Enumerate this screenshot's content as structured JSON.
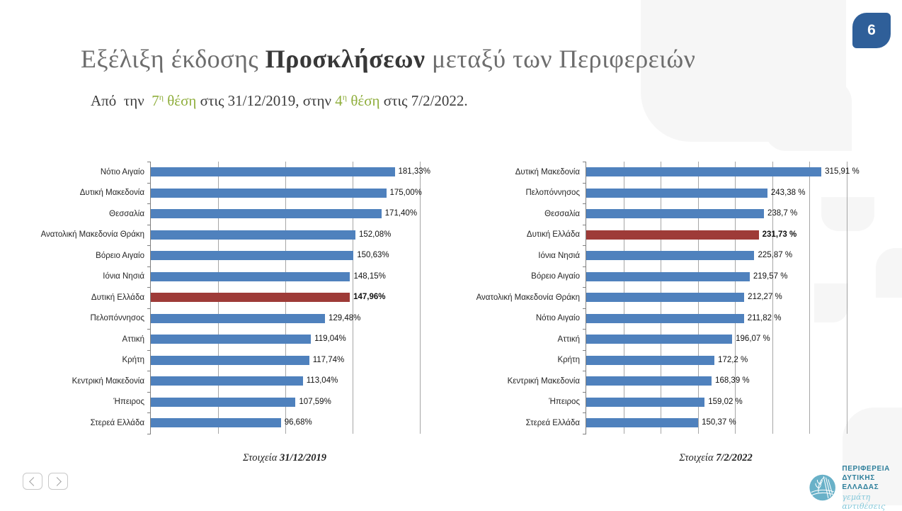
{
  "page_number": "6",
  "title": {
    "part1": "Εξέλιξη έκδοσης ",
    "part2": "Προσκλήσεων",
    "part3": " μεταξύ των Περιφερειών"
  },
  "subtitle": {
    "segments": [
      {
        "text": "Από  την  ",
        "green": false
      },
      {
        "text": "7",
        "green": true
      },
      {
        "text": "η",
        "green": true,
        "sup": true
      },
      {
        "text": " θέση",
        "green": true
      },
      {
        "text": " στις 31/12/2019, στην ",
        "green": false
      },
      {
        "text": "4",
        "green": true
      },
      {
        "text": "η",
        "green": true,
        "sup": true
      },
      {
        "text": " θέση",
        "green": true
      },
      {
        "text": " στις 7/2/2022.",
        "green": false
      }
    ]
  },
  "chart_data": [
    {
      "type": "bar",
      "orientation": "horizontal",
      "caption_prefix": "Στοιχεία ",
      "caption_date": "31/12/2019",
      "xlim": [
        0,
        200
      ],
      "gridline_step": 50,
      "grid": true,
      "categories": [
        "Νότιο Αιγαίο",
        "Δυτική Μακεδονία",
        "Θεσσαλία",
        "Ανατολική Μακεδονία Θράκη",
        "Βόρειο Αιγαίο",
        "Ιόνια Νησιά",
        "Δυτική Ελλάδα",
        "Πελοπόννησος",
        "Αττική",
        "Κρήτη",
        "Κεντρική Μακεδονία",
        "Ήπειρος",
        "Στερεά Ελλάδα"
      ],
      "values": [
        181.33,
        175.0,
        171.4,
        152.08,
        150.63,
        148.15,
        147.96,
        129.48,
        119.04,
        117.74,
        113.04,
        107.59,
        96.68
      ],
      "labels": [
        "181,33%",
        "175,00%",
        "171,40%",
        "152,08%",
        "150,63%",
        "148,15%",
        "147,96%",
        "129,48%",
        "119,04%",
        "117,74%",
        "113,04%",
        "107,59%",
        "96,68%"
      ],
      "highlight_index": 6,
      "bar_color": "#4f81bd",
      "highlight_color": "#9e3b38"
    },
    {
      "type": "bar",
      "orientation": "horizontal",
      "caption_prefix": "Στοιχεία ",
      "caption_date": "7/2/2022",
      "xlim": [
        0,
        350
      ],
      "gridline_step": 50,
      "grid": true,
      "categories": [
        "Δυτική Μακεδονία",
        "Πελοπόννησος",
        "Θεσσαλία",
        "Δυτική Ελλάδα",
        "Ιόνια Νησιά",
        "Βόρειο Αιγαίο",
        "Ανατολική Μακεδονία Θράκη",
        "Νότιο Αιγαίο",
        "Αττική",
        "Κρήτη",
        "Κεντρική Μακεδονία",
        "Ήπειρος",
        "Στερεά Ελλάδα"
      ],
      "values": [
        315.91,
        243.38,
        238.7,
        231.73,
        225.87,
        219.57,
        212.27,
        211.82,
        196.07,
        172.2,
        168.39,
        159.02,
        150.37
      ],
      "labels": [
        "315,91 %",
        "243,38 %",
        "238,7 %",
        "231,73 %",
        "225,87 %",
        "219,57 %",
        "212,27 %",
        "211,82 %",
        "196,07 %",
        "172,2 %",
        "168,39 %",
        "159,02 %",
        "150,37 %"
      ],
      "highlight_index": 3,
      "bar_color": "#4f81bd",
      "highlight_color": "#9e3b38"
    }
  ],
  "nav": {
    "prev": "previous",
    "next": "next"
  },
  "logo": {
    "line1": "ΠΕΡΙΦΕΡΕΙΑ",
    "line2": "ΔΥΤΙΚΗΣ",
    "line3": "ΕΛΛΑΔΑΣ",
    "tagline": "γεμάτη αντιθέσεις"
  },
  "colors": {
    "bar_blue": "#4f81bd",
    "bar_red": "#9e3b38",
    "badge_blue": "#2f5f99",
    "highlight_green": "#8fae3c",
    "logo_teal": "#69b1c8",
    "gridline_gray": "#a6a6a6"
  }
}
